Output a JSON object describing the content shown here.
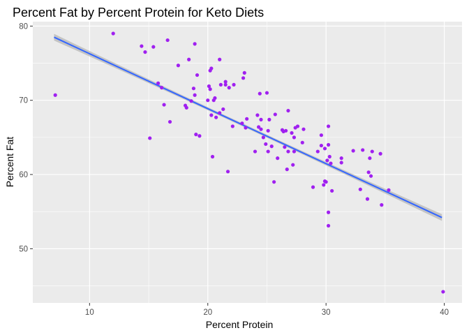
{
  "chart_data": {
    "type": "scatter",
    "title": "Percent Fat by Percent Protein for Keto Diets",
    "xlabel": "Percent Protein",
    "ylabel": "Percent Fat",
    "xlim": [
      5.2,
      41.5
    ],
    "ylim": [
      42.7,
      80.6
    ],
    "xticks": [
      10,
      20,
      30,
      40
    ],
    "yticks": [
      50,
      60,
      70,
      80
    ],
    "grid": true,
    "legend": "none",
    "colors": {
      "panel": "#ebebeb",
      "grid": "#ffffff",
      "points": "#a020f0",
      "fit_line": "#3366ff",
      "confidence_band": "#bdbdbd"
    },
    "fit_line": {
      "x": [
        7.0,
        39.8
      ],
      "y": [
        78.5,
        54.2
      ],
      "band_halfwidth_end": 0.45,
      "band_halfwidth_mid": 0.2
    },
    "points": [
      [
        7.1,
        70.7
      ],
      [
        12.0,
        79.0
      ],
      [
        14.4,
        77.3
      ],
      [
        14.7,
        76.5
      ],
      [
        15.1,
        64.9
      ],
      [
        15.4,
        77.2
      ],
      [
        15.8,
        72.3
      ],
      [
        16.1,
        71.7
      ],
      [
        16.3,
        69.4
      ],
      [
        16.6,
        78.1
      ],
      [
        16.8,
        67.1
      ],
      [
        17.5,
        74.7
      ],
      [
        18.1,
        69.3
      ],
      [
        18.2,
        69.0
      ],
      [
        18.4,
        75.5
      ],
      [
        18.6,
        69.9
      ],
      [
        18.8,
        71.6
      ],
      [
        18.9,
        77.6
      ],
      [
        18.9,
        70.7
      ],
      [
        19.1,
        73.4
      ],
      [
        19.0,
        65.4
      ],
      [
        19.3,
        65.2
      ],
      [
        20.0,
        70.0
      ],
      [
        20.1,
        71.9
      ],
      [
        20.2,
        74.0
      ],
      [
        20.2,
        71.5
      ],
      [
        20.3,
        74.3
      ],
      [
        20.3,
        68.0
      ],
      [
        20.4,
        62.4
      ],
      [
        20.5,
        70.0
      ],
      [
        20.6,
        70.3
      ],
      [
        20.7,
        67.7
      ],
      [
        21.0,
        75.5
      ],
      [
        21.1,
        72.1
      ],
      [
        21.0,
        68.3
      ],
      [
        21.3,
        68.8
      ],
      [
        21.5,
        72.5
      ],
      [
        21.5,
        72.1
      ],
      [
        21.7,
        60.4
      ],
      [
        21.8,
        71.7
      ],
      [
        22.1,
        66.5
      ],
      [
        22.2,
        72.1
      ],
      [
        22.9,
        66.9
      ],
      [
        23.0,
        73.0
      ],
      [
        23.1,
        73.7
      ],
      [
        23.2,
        66.3
      ],
      [
        23.3,
        67.5
      ],
      [
        24.0,
        63.1
      ],
      [
        24.2,
        68.0
      ],
      [
        24.3,
        66.4
      ],
      [
        24.4,
        70.9
      ],
      [
        24.5,
        67.4
      ],
      [
        24.5,
        66.1
      ],
      [
        24.7,
        65.0
      ],
      [
        24.9,
        64.1
      ],
      [
        25.0,
        71.0
      ],
      [
        25.1,
        63.1
      ],
      [
        25.1,
        65.9
      ],
      [
        25.2,
        67.4
      ],
      [
        25.4,
        63.8
      ],
      [
        25.6,
        59.0
      ],
      [
        25.7,
        68.1
      ],
      [
        25.9,
        62.2
      ],
      [
        26.3,
        66.0
      ],
      [
        26.4,
        65.8
      ],
      [
        26.5,
        63.7
      ],
      [
        26.6,
        65.9
      ],
      [
        26.7,
        60.7
      ],
      [
        26.8,
        63.1
      ],
      [
        26.8,
        68.6
      ],
      [
        27.1,
        65.6
      ],
      [
        27.2,
        61.3
      ],
      [
        27.3,
        63.1
      ],
      [
        27.3,
        65.0
      ],
      [
        27.4,
        66.3
      ],
      [
        27.6,
        66.5
      ],
      [
        28.0,
        64.3
      ],
      [
        28.1,
        66.1
      ],
      [
        28.9,
        58.3
      ],
      [
        29.3,
        63.1
      ],
      [
        29.6,
        65.3
      ],
      [
        29.6,
        63.9
      ],
      [
        29.8,
        58.6
      ],
      [
        29.9,
        59.1
      ],
      [
        29.9,
        63.5
      ],
      [
        30.0,
        59.0
      ],
      [
        30.1,
        61.9
      ],
      [
        30.2,
        64.0
      ],
      [
        30.2,
        66.5
      ],
      [
        30.2,
        54.9
      ],
      [
        30.2,
        53.1
      ],
      [
        30.3,
        62.4
      ],
      [
        30.4,
        61.5
      ],
      [
        30.5,
        57.8
      ],
      [
        31.3,
        61.6
      ],
      [
        31.3,
        62.2
      ],
      [
        32.3,
        63.2
      ],
      [
        32.9,
        58.0
      ],
      [
        33.1,
        63.3
      ],
      [
        33.5,
        56.7
      ],
      [
        33.6,
        60.3
      ],
      [
        33.7,
        62.2
      ],
      [
        33.8,
        59.8
      ],
      [
        33.9,
        63.1
      ],
      [
        34.6,
        62.8
      ],
      [
        34.7,
        55.9
      ],
      [
        35.3,
        57.9
      ],
      [
        39.9,
        44.2
      ]
    ]
  }
}
